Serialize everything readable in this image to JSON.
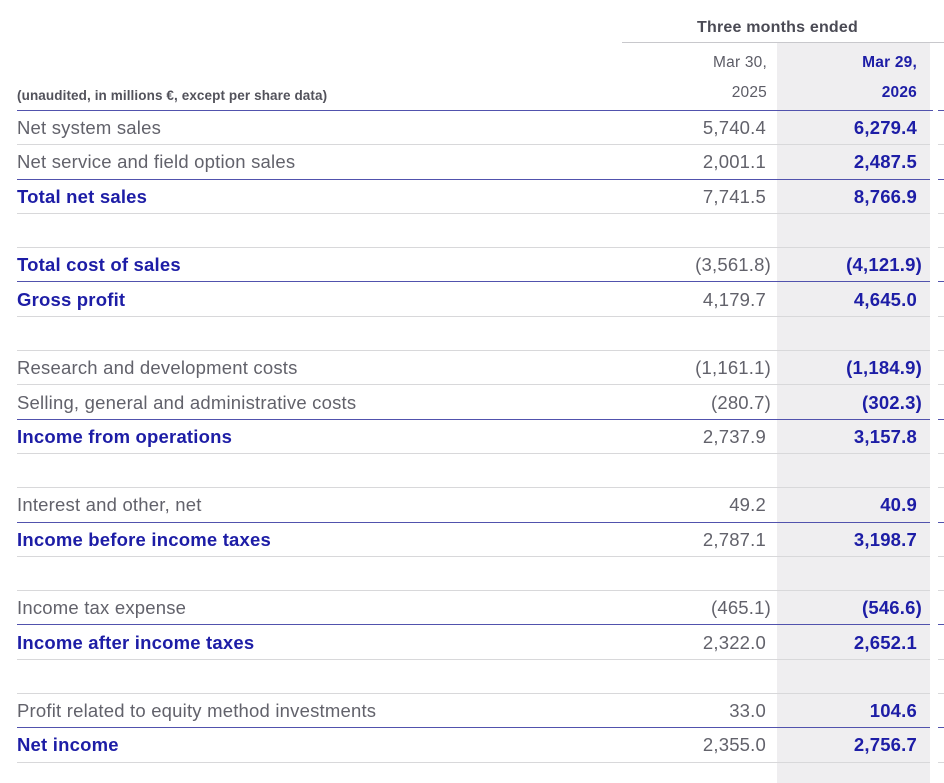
{
  "table": {
    "period_header": "Three months ended",
    "units_note": "(unaudited, in millions €, except per share data)",
    "columns": [
      {
        "month": "Mar 30,",
        "year": "2025",
        "highlight": false
      },
      {
        "month": "Mar 29,",
        "year": "2026",
        "highlight": true
      }
    ],
    "rows": [
      {
        "label": "Net system sales",
        "v2025": "5,740.4",
        "v2026": "6,279.4",
        "total": false,
        "line": "gray"
      },
      {
        "label": "Net service and field option sales",
        "v2025": "2,001.1",
        "v2026": "2,487.5",
        "total": false,
        "line": "blue"
      },
      {
        "label": "Total net sales",
        "v2025": "7,741.5",
        "v2026": "8,766.9",
        "total": true,
        "line": "gray"
      },
      {
        "spacer": true,
        "line": "gray"
      },
      {
        "label": "Total cost of sales",
        "v2025": "(3,561.8)",
        "v2026": "(4,121.9)",
        "total": true,
        "line": "blue"
      },
      {
        "label": "Gross profit",
        "v2025": "4,179.7",
        "v2026": "4,645.0",
        "total": true,
        "line": "gray"
      },
      {
        "spacer": true,
        "line": "gray"
      },
      {
        "label": "Research and development costs",
        "v2025": "(1,161.1)",
        "v2026": "(1,184.9)",
        "total": false,
        "line": "gray"
      },
      {
        "label": "Selling, general and administrative costs",
        "v2025": "(280.7)",
        "v2026": "(302.3)",
        "total": false,
        "line": "blue"
      },
      {
        "label": "Income from operations",
        "v2025": "2,737.9",
        "v2026": "3,157.8",
        "total": true,
        "line": "gray"
      },
      {
        "spacer": true,
        "line": "gray"
      },
      {
        "label": "Interest and other, net",
        "v2025": "49.2",
        "v2026": "40.9",
        "total": false,
        "line": "blue"
      },
      {
        "label": "Income before income taxes",
        "v2025": "2,787.1",
        "v2026": "3,198.7",
        "total": true,
        "line": "gray"
      },
      {
        "spacer": true,
        "line": "gray"
      },
      {
        "label": "Income tax expense",
        "v2025": "(465.1)",
        "v2026": "(546.6)",
        "total": false,
        "line": "blue"
      },
      {
        "label": "Income after income taxes",
        "v2025": "2,322.0",
        "v2026": "2,652.1",
        "total": true,
        "line": "gray"
      },
      {
        "spacer": true,
        "line": "gray"
      },
      {
        "label": "Profit related to equity method investments",
        "v2025": "33.0",
        "v2026": "104.6",
        "total": false,
        "line": "blue"
      },
      {
        "label": "Net income",
        "v2025": "2,355.0",
        "v2026": "2,756.7",
        "total": true,
        "line": "gray"
      }
    ]
  },
  "colors": {
    "accent_blue": "#1d1da6",
    "line_gray": "#d8d8da",
    "line_blue": "#5152ad",
    "highlight_column_bg": "#efeef0",
    "text_gray": "#62626b",
    "note_gray": "#52525b",
    "group_header_gray": "#4a4a54",
    "date_gray": "#5c5c66",
    "group_header_line": "#c8c8cc"
  }
}
